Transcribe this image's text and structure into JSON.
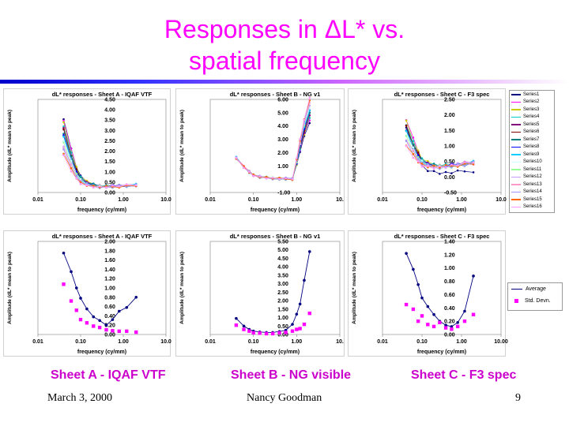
{
  "slide": {
    "title_line1": "Responses in ΔL* vs.",
    "title_line2": "spatial frequency",
    "captions": [
      "Sheet A - IQAF VTF",
      "Sheet B - NG visible",
      "Sheet C - F3 spec"
    ],
    "date": "March 3, 2000",
    "author": "Nancy Goodman",
    "page": "9"
  },
  "chart_data": [
    {
      "id": "top-a",
      "type": "line",
      "title": "dL* responses - Sheet A - IQAF VTF",
      "xlabel": "frequency (cy/mm)",
      "ylabel": "Amplitude (dL* mean to peak)",
      "xscale": "log",
      "xlim": [
        0.01,
        10
      ],
      "xticks": [
        "0.01",
        "0.10",
        "1.00",
        "10.0"
      ],
      "ylim": [
        0,
        4.5
      ],
      "yticks": [
        "4.50",
        "4.00",
        "3.50",
        "3.00",
        "2.50",
        "2.00",
        "1.50",
        "1.00",
        "0.50",
        "0.00"
      ],
      "x": [
        0.04,
        0.06,
        0.08,
        0.1,
        0.14,
        0.2,
        0.28,
        0.4,
        0.56,
        0.8,
        1.2,
        2.0
      ],
      "series_count": 16,
      "series": []
    },
    {
      "id": "top-b",
      "type": "line",
      "title": "dL* responses - Sheet B - NG v1",
      "xlabel": "frequency (cy/mm)",
      "ylabel": "Amplitude (dL* mean to peak)",
      "xscale": "log",
      "xlim": [
        0.01,
        10
      ],
      "xticks": [
        "0.01",
        "0.10",
        "1.00",
        "10."
      ],
      "ylim": [
        -1,
        6
      ],
      "yticks": [
        "6.00",
        "5.00",
        "4.00",
        "3.00",
        "2.00",
        "1.00",
        "-1.00"
      ],
      "x": [
        0.04,
        0.06,
        0.08,
        0.1,
        0.14,
        0.2,
        0.28,
        0.4,
        0.56,
        0.8,
        1.0,
        1.2,
        1.5,
        2.0
      ],
      "series_count": 16,
      "series": []
    },
    {
      "id": "top-c",
      "type": "line",
      "title": "dL* responses - Sheet C - F3 spec",
      "xlabel": "frequency (cy/mm)",
      "ylabel": "Amplitude (dL* mean to peak)",
      "xscale": "log",
      "xlim": [
        0.01,
        10
      ],
      "xticks": [
        "0.01",
        "0.10",
        "1.00",
        "10.0"
      ],
      "ylim": [
        -0.5,
        2.5
      ],
      "yticks": [
        "2.50",
        "2.00",
        "1.50",
        "1.00",
        "0.50",
        "0.00",
        "-0.50"
      ],
      "x": [
        0.04,
        0.06,
        0.08,
        0.1,
        0.14,
        0.2,
        0.28,
        0.4,
        0.56,
        0.8,
        1.2,
        2.0
      ],
      "series_count": 16,
      "series": [],
      "legend": [
        "Series1",
        "Series2",
        "Series3",
        "Series4",
        "Series5",
        "Series6",
        "Series7",
        "Series8",
        "Series9",
        "Series10",
        "Series11",
        "Series12",
        "Series13",
        "Series14",
        "Series15",
        "Series16"
      ]
    },
    {
      "id": "bot-a",
      "type": "line",
      "title": "dL* responses - Sheet A - IQAF VTF",
      "xlabel": "frequency (cy/mm)",
      "ylabel": "Amplitude (dL* mean to peak)",
      "xscale": "log",
      "xlim": [
        0.01,
        10
      ],
      "xticks": [
        "0.01",
        "0.10",
        "1.00",
        "10.0"
      ],
      "ylim": [
        0,
        2.0
      ],
      "yticks": [
        "2.00",
        "1.80",
        "1.60",
        "1.40",
        "1.20",
        "1.00",
        "0.80",
        "0.60",
        "0.40",
        "0.20",
        "0.00"
      ],
      "series": [
        {
          "name": "Average",
          "style": "line",
          "x": [
            0.04,
            0.06,
            0.08,
            0.1,
            0.14,
            0.2,
            0.28,
            0.4,
            0.56,
            0.8,
            1.2,
            2.0
          ],
          "values": [
            1.75,
            1.35,
            1.0,
            0.78,
            0.55,
            0.38,
            0.3,
            0.2,
            0.32,
            0.5,
            0.58,
            0.8
          ]
        },
        {
          "name": "Std. Devn.",
          "style": "scatter",
          "x": [
            0.04,
            0.06,
            0.08,
            0.1,
            0.14,
            0.2,
            0.28,
            0.4,
            0.56,
            0.8,
            1.2,
            2.0
          ],
          "values": [
            1.08,
            0.72,
            0.52,
            0.32,
            0.25,
            0.18,
            0.15,
            0.1,
            0.08,
            0.07,
            0.07,
            0.05
          ]
        }
      ]
    },
    {
      "id": "bot-b",
      "type": "line",
      "title": "dL* responses - Sheet B - NG v1",
      "xlabel": "frequency (cy/mm)",
      "ylabel": "Amplitude (dL* mean to peak)",
      "xscale": "log",
      "xlim": [
        0.01,
        10
      ],
      "xticks": [
        "0.01",
        "0.10",
        "1.00",
        "10."
      ],
      "ylim": [
        0,
        5.5
      ],
      "yticks": [
        "5.50",
        "5.00",
        "4.50",
        "4.00",
        "3.50",
        "3.00",
        "2.50",
        "2.00",
        "1.50",
        "1.00",
        "0.50",
        "0.00"
      ],
      "series": [
        {
          "name": "Average",
          "style": "line",
          "x": [
            0.04,
            0.06,
            0.08,
            0.1,
            0.14,
            0.2,
            0.28,
            0.4,
            0.56,
            0.8,
            1.0,
            1.2,
            1.5,
            2.0
          ],
          "values": [
            0.95,
            0.5,
            0.3,
            0.2,
            0.15,
            0.12,
            0.12,
            0.18,
            0.25,
            0.6,
            1.2,
            1.8,
            3.2,
            4.9
          ]
        },
        {
          "name": "Std. Devn.",
          "style": "scatter",
          "x": [
            0.04,
            0.06,
            0.08,
            0.1,
            0.14,
            0.2,
            0.28,
            0.4,
            0.56,
            0.8,
            1.0,
            1.2,
            1.5,
            2.0
          ],
          "values": [
            0.55,
            0.3,
            0.2,
            0.1,
            0.08,
            0.05,
            0.05,
            0.1,
            0.12,
            0.2,
            0.3,
            0.35,
            0.6,
            1.25
          ]
        }
      ]
    },
    {
      "id": "bot-c",
      "type": "line",
      "title": "dL* responses - Sheet C - F3 spec",
      "xlabel": "frequency (cy/mm)",
      "ylabel": "Amplitude (dL* mean to peak)",
      "xscale": "log",
      "xlim": [
        0.01,
        10
      ],
      "xticks": [
        "0.01",
        "0.10",
        "1.00",
        "10.00"
      ],
      "ylim": [
        0,
        1.4
      ],
      "yticks": [
        "1.40",
        "1.20",
        "1.00",
        "0.80",
        "0.60",
        "0.40",
        "0.20",
        "0.00"
      ],
      "legend_position": "right",
      "legend": [
        "Average",
        "Std. Devn."
      ],
      "series": [
        {
          "name": "Average",
          "style": "line",
          "x": [
            0.04,
            0.06,
            0.08,
            0.1,
            0.14,
            0.2,
            0.28,
            0.4,
            0.56,
            0.8,
            1.2,
            2.0
          ],
          "values": [
            1.22,
            0.98,
            0.75,
            0.55,
            0.42,
            0.3,
            0.2,
            0.14,
            0.12,
            0.18,
            0.35,
            0.88
          ]
        },
        {
          "name": "Std. Devn.",
          "style": "scatter",
          "x": [
            0.04,
            0.06,
            0.08,
            0.1,
            0.14,
            0.2,
            0.28,
            0.4,
            0.56,
            0.8,
            1.2,
            2.0
          ],
          "values": [
            0.45,
            0.38,
            0.2,
            0.28,
            0.15,
            0.12,
            0.18,
            0.1,
            0.08,
            0.12,
            0.2,
            0.3
          ]
        }
      ]
    }
  ],
  "colors": {
    "title": "#ff00ff",
    "caption": "#cc00cc",
    "average": "#000080",
    "stddev": "#ff00ff",
    "series": [
      "#000080",
      "#ff00ff",
      "#cccc00",
      "#00cccc",
      "#800080",
      "#800000",
      "#008080",
      "#0000ff",
      "#00ccff",
      "#ccffff",
      "#99ff99",
      "#cc99ff",
      "#ff99cc",
      "#9999ff",
      "#ff6600",
      "#ff99ff"
    ]
  }
}
